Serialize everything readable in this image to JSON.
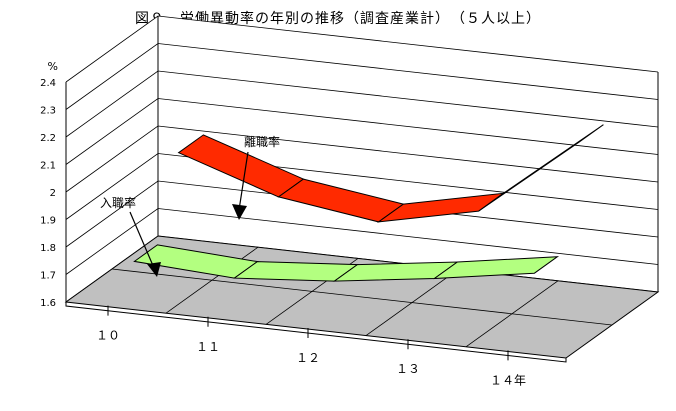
{
  "chart_data": {
    "type": "line",
    "title": "図９　労働異動率の年別の推移（調査産業計）　（５人以上）",
    "xlabel": "",
    "ylabel": "",
    "unit_label": "%",
    "categories": [
      "１０",
      "１１",
      "１２",
      "１３",
      "１４年"
    ],
    "ylim": [
      1.6,
      2.4
    ],
    "yticks": [
      "1.6",
      "1.7",
      "1.8",
      "1.9",
      "2",
      "2.1",
      "2.2",
      "2.3",
      "2.4"
    ],
    "grid": true,
    "style": "3d-ribbon",
    "series": [
      {
        "name": "入職率",
        "color": "#b3ff80",
        "values": [
          1.72,
          1.7,
          1.73,
          1.78,
          1.84
        ]
      },
      {
        "name": "離職率",
        "color": "#ff2a00",
        "values": [
          2.0,
          1.88,
          1.83,
          1.91,
          2.2
        ]
      }
    ],
    "floor_color": "#c0c0c0"
  }
}
